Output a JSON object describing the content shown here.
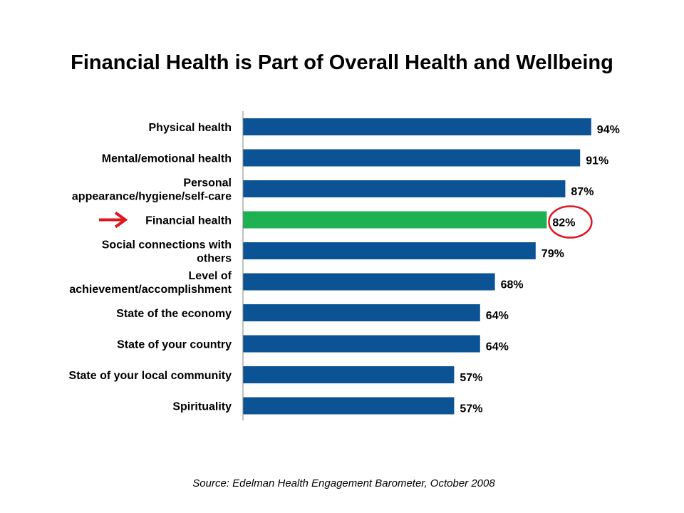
{
  "chart_data": {
    "type": "bar",
    "orientation": "horizontal",
    "title": "Financial Health is Part of Overall Health and Wellbeing",
    "categories": [
      [
        "Physical health"
      ],
      [
        "Mental/emotional health"
      ],
      [
        "Personal",
        "appearance/hygiene/self-care"
      ],
      [
        "Financial health"
      ],
      [
        "Social connections with",
        "others"
      ],
      [
        "Level of",
        "achievement/accomplishment"
      ],
      [
        "State of the economy"
      ],
      [
        "State of your country"
      ],
      [
        "State of your local community"
      ],
      [
        "Spirituality"
      ]
    ],
    "values": [
      94,
      91,
      87,
      82,
      79,
      68,
      64,
      64,
      57,
      57
    ],
    "value_labels": [
      "94%",
      "91%",
      "87%",
      "82%",
      "79%",
      "68%",
      "64%",
      "64%",
      "57%",
      "57%"
    ],
    "xlim": [
      0,
      100
    ],
    "grid": false,
    "highlight_index": 3,
    "highlight_annotations": [
      "red-arrow-icon",
      "red-circle"
    ],
    "colors": {
      "bar": "#0B5394",
      "highlight": "#1DB153",
      "annotation": "#E0161D"
    },
    "source": "Source: Edelman Health Engagement Barometer, October 2008"
  }
}
